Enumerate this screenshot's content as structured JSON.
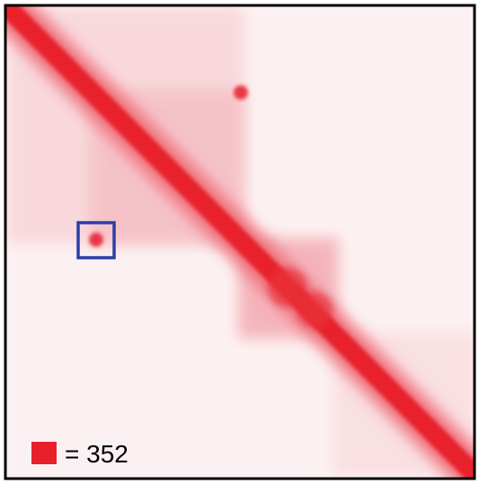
{
  "legend": {
    "text": "= 352"
  }
}
